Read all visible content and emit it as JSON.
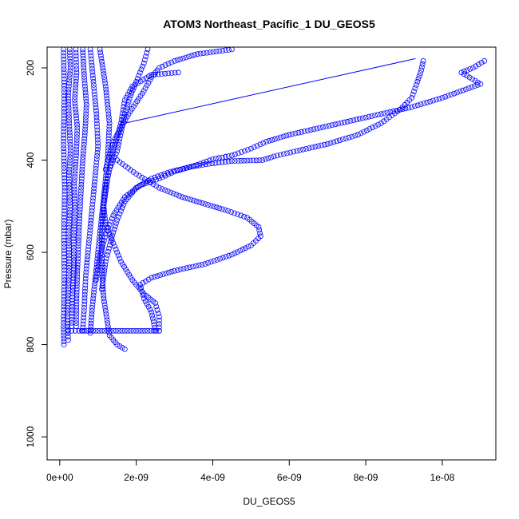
{
  "chart_data": {
    "type": "scatter",
    "title": "ATOM3 Northeast_Pacific_1 DU_GEOS5",
    "xlabel": "DU_GEOS5",
    "ylabel": "Pressure (mbar)",
    "xlim": [
      -3.3e-10,
      1.14e-08
    ],
    "ylim": [
      1050,
      155
    ],
    "y_reversed": true,
    "grid": false,
    "legend": "none",
    "marker": "open-circle",
    "color": "#0000ff",
    "x_ticks": [
      {
        "value": 0,
        "label": "0e+00"
      },
      {
        "value": 2e-09,
        "label": "2e-09"
      },
      {
        "value": 4e-09,
        "label": "4e-09"
      },
      {
        "value": 6e-09,
        "label": "6e-09"
      },
      {
        "value": 8e-09,
        "label": "8e-09"
      },
      {
        "value": 1e-08,
        "label": "1e-08"
      }
    ],
    "y_ticks": [
      {
        "value": 200,
        "label": "200"
      },
      {
        "value": 400,
        "label": "400"
      },
      {
        "value": 600,
        "label": "600"
      },
      {
        "value": 800,
        "label": "800"
      },
      {
        "value": 1000,
        "label": "1000"
      }
    ],
    "series": [
      {
        "points": [
          [
            2.6e-10,
            160
          ],
          [
            2.8e-10,
            200
          ],
          [
            2.2e-10,
            260
          ],
          [
            2.5e-10,
            320
          ],
          [
            2.8e-10,
            380
          ],
          [
            2.4e-10,
            440
          ],
          [
            2.7e-10,
            500
          ],
          [
            2.3e-10,
            560
          ],
          [
            2.5e-10,
            620
          ],
          [
            2.2e-10,
            680
          ],
          [
            2e-10,
            740
          ],
          [
            2.2e-10,
            790
          ]
        ]
      },
      {
        "points": [
          [
            4.2e-10,
            160
          ],
          [
            4.4e-10,
            210
          ],
          [
            3.9e-10,
            270
          ],
          [
            4.6e-10,
            330
          ],
          [
            4.3e-10,
            390
          ],
          [
            3.8e-10,
            450
          ],
          [
            4e-10,
            510
          ],
          [
            3.6e-10,
            570
          ],
          [
            3.8e-10,
            630
          ],
          [
            3.4e-10,
            690
          ],
          [
            3.1e-10,
            760
          ]
        ]
      },
      {
        "points": [
          [
            6e-10,
            160
          ],
          [
            6.4e-10,
            220
          ],
          [
            7e-10,
            280
          ],
          [
            6.6e-10,
            340
          ],
          [
            6e-10,
            400
          ],
          [
            5.6e-10,
            460
          ],
          [
            5.2e-10,
            520
          ],
          [
            4.9e-10,
            580
          ],
          [
            4.6e-10,
            640
          ],
          [
            4.4e-10,
            700
          ],
          [
            4.3e-10,
            760
          ]
        ]
      },
      {
        "points": [
          [
            8e-10,
            160
          ],
          [
            8.8e-10,
            230
          ],
          [
            9.6e-10,
            300
          ],
          [
            1e-09,
            370
          ],
          [
            9.2e-10,
            440
          ],
          [
            8.4e-10,
            510
          ],
          [
            7.6e-10,
            580
          ],
          [
            6.8e-10,
            650
          ],
          [
            6.4e-10,
            720
          ],
          [
            6e-10,
            770
          ]
        ]
      },
      {
        "points": [
          [
            1.05e-09,
            160
          ],
          [
            1.2e-09,
            240
          ],
          [
            1.3e-09,
            320
          ],
          [
            1.25e-09,
            400
          ],
          [
            1.15e-09,
            480
          ],
          [
            1.05e-09,
            560
          ],
          [
            9.5e-10,
            640
          ],
          [
            8.5e-10,
            720
          ],
          [
            8e-10,
            775
          ]
        ]
      },
      {
        "points": [
          [
            1e-10,
            160
          ],
          [
            1.2e-10,
            260
          ],
          [
            1e-10,
            360
          ],
          [
            1.3e-10,
            460
          ],
          [
            1.1e-10,
            560
          ],
          [
            1.2e-10,
            660
          ],
          [
            1e-10,
            760
          ],
          [
            1.1e-10,
            800
          ]
        ]
      },
      {
        "points": [
          [
            3.1e-09,
            210
          ],
          [
            2.4e-09,
            215
          ],
          [
            1.9e-09,
            240
          ],
          [
            1.7e-09,
            270
          ],
          [
            1.6e-09,
            320
          ],
          [
            1.4e-09,
            380
          ],
          [
            1.25e-09,
            440
          ],
          [
            1.15e-09,
            500
          ],
          [
            1.1e-09,
            560
          ],
          [
            1.1e-09,
            640
          ],
          [
            1.15e-09,
            700
          ],
          [
            1.3e-09,
            780
          ],
          [
            1.5e-09,
            800
          ],
          [
            1.7e-09,
            810
          ]
        ]
      },
      {
        "points": [
          [
            2.3e-09,
            160
          ],
          [
            2.2e-09,
            190
          ],
          [
            2e-09,
            230
          ],
          [
            1.85e-09,
            260
          ],
          [
            1.7e-09,
            300
          ],
          [
            1.6e-09,
            340
          ],
          [
            1.5e-09,
            380
          ],
          [
            1.3e-09,
            420
          ],
          [
            1.2e-09,
            460
          ],
          [
            1.15e-09,
            500
          ],
          [
            1.2e-09,
            540
          ],
          [
            1.4e-09,
            580
          ],
          [
            1.6e-09,
            620
          ],
          [
            1.9e-09,
            660
          ],
          [
            2.2e-09,
            690
          ],
          [
            2.5e-09,
            710
          ],
          [
            2.6e-09,
            740
          ],
          [
            2.6e-09,
            770
          ]
        ]
      },
      {
        "points": [
          [
            2.2e-10,
            770
          ],
          [
            5e-10,
            770
          ],
          [
            8e-10,
            770
          ],
          [
            1.1e-09,
            770
          ],
          [
            1.4e-09,
            770
          ],
          [
            1.7e-09,
            770
          ],
          [
            2e-09,
            770
          ],
          [
            2.3e-09,
            770
          ],
          [
            2.6e-09,
            770
          ]
        ]
      },
      {
        "points": [
          [
            4.5e-09,
            160
          ],
          [
            3.6e-09,
            170
          ],
          [
            3e-09,
            185
          ],
          [
            2.6e-09,
            200
          ],
          [
            2.4e-09,
            220
          ],
          [
            2.2e-09,
            250
          ],
          [
            1.8e-09,
            300
          ],
          [
            1.4e-09,
            360
          ],
          [
            1.2e-09,
            420
          ]
        ]
      },
      {
        "points": [
          [
            9.5e-09,
            185
          ],
          [
            9.45e-09,
            205
          ],
          [
            9.35e-09,
            230
          ],
          [
            9.2e-09,
            265
          ],
          [
            8.9e-09,
            290
          ],
          [
            8.4e-09,
            320
          ],
          [
            7.8e-09,
            345
          ],
          [
            7e-09,
            365
          ],
          [
            6.2e-09,
            380
          ],
          [
            5.6e-09,
            392
          ],
          [
            5.3e-09,
            400
          ],
          [
            4.5e-09,
            402
          ],
          [
            3.9e-09,
            408
          ],
          [
            3.4e-09,
            415
          ],
          [
            2.9e-09,
            425
          ],
          [
            2.4e-09,
            440
          ],
          [
            2e-09,
            460
          ],
          [
            1.7e-09,
            490
          ],
          [
            1.5e-09,
            530
          ],
          [
            1.35e-09,
            570
          ],
          [
            1.2e-09,
            620
          ],
          [
            1.1e-09,
            680
          ]
        ]
      },
      {
        "points": [
          [
            1.11e-08,
            185
          ],
          [
            1.08e-08,
            200
          ],
          [
            1.05e-08,
            210
          ],
          [
            1.1e-08,
            235
          ],
          [
            1e-08,
            265
          ],
          [
            9.2e-09,
            285
          ],
          [
            8.4e-09,
            300
          ],
          [
            7.6e-09,
            315
          ],
          [
            6.8e-09,
            330
          ],
          [
            6e-09,
            345
          ],
          [
            5.4e-09,
            360
          ],
          [
            5e-09,
            375
          ],
          [
            4.5e-09,
            390
          ],
          [
            4e-09,
            398
          ],
          [
            3.6e-09,
            410
          ],
          [
            3e-09,
            425
          ],
          [
            2.6e-09,
            440
          ],
          [
            2.1e-09,
            455
          ],
          [
            1.7e-09,
            480
          ],
          [
            1.4e-09,
            520
          ],
          [
            1.2e-09,
            560
          ],
          [
            1.05e-09,
            610
          ],
          [
            9.5e-10,
            660
          ]
        ]
      },
      {
        "points": [
          [
            1.5e-09,
            400
          ],
          [
            2e-09,
            430
          ],
          [
            2.6e-09,
            460
          ],
          [
            3.2e-09,
            480
          ],
          [
            3.8e-09,
            495
          ],
          [
            4.4e-09,
            510
          ],
          [
            4.9e-09,
            525
          ],
          [
            5.2e-09,
            545
          ],
          [
            5.25e-09,
            565
          ],
          [
            5e-09,
            585
          ],
          [
            4.5e-09,
            605
          ],
          [
            3.8e-09,
            625
          ],
          [
            3e-09,
            640
          ],
          [
            2.4e-09,
            655
          ],
          [
            2.1e-09,
            670
          ],
          [
            2.2e-09,
            700
          ],
          [
            2.4e-09,
            730
          ],
          [
            2.5e-09,
            770
          ]
        ]
      }
    ],
    "outlier_line": [
      [
        9.3e-09,
        180
      ],
      [
        1.7e-09,
        320
      ]
    ]
  }
}
